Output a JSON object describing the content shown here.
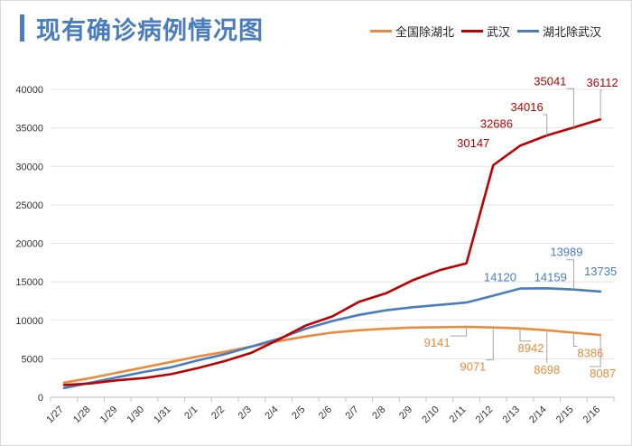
{
  "title": "现有确诊病例情况图",
  "legend": [
    {
      "name": "全国除湖北",
      "color": "#ed8b3c"
    },
    {
      "name": "武汉",
      "color": "#c00000"
    },
    {
      "name": "湖北除武汉",
      "color": "#4a7cc0"
    }
  ],
  "chart_data": {
    "type": "line",
    "title": "现有确诊病例情况图",
    "xlabel": "",
    "ylabel": "",
    "ylim": [
      0,
      40000
    ],
    "yticks": [
      0,
      5000,
      10000,
      15000,
      20000,
      25000,
      30000,
      35000,
      40000
    ],
    "grid": true,
    "legend_position": "top-right",
    "categories": [
      "1/27",
      "1/28",
      "1/29",
      "1/30",
      "1/31",
      "2/1",
      "2/2",
      "2/3",
      "2/4",
      "2/5",
      "2/6",
      "2/7",
      "2/8",
      "2/9",
      "2/10",
      "2/11",
      "2/12",
      "2/13",
      "2/14",
      "2/15",
      "2/16"
    ],
    "series": [
      {
        "name": "全国除湖北",
        "color": "#ed8b3c",
        "values": [
          1900,
          2500,
          3200,
          3900,
          4600,
          5300,
          5900,
          6600,
          7300,
          7900,
          8400,
          8700,
          8900,
          9050,
          9100,
          9141,
          9071,
          8942,
          8698,
          8386,
          8087
        ],
        "labels": [
          {
            "index": 15,
            "text": "9141"
          },
          {
            "index": 16,
            "text": "9071"
          },
          {
            "index": 17,
            "text": "8942"
          },
          {
            "index": 18,
            "text": "8698"
          },
          {
            "index": 19,
            "text": "8386"
          },
          {
            "index": 20,
            "text": "8087"
          }
        ]
      },
      {
        "name": "武汉",
        "color": "#c00000",
        "values": [
          1600,
          1800,
          2200,
          2500,
          3000,
          3800,
          4700,
          5800,
          7500,
          9300,
          10500,
          12400,
          13500,
          15200,
          16500,
          17400,
          30147,
          32686,
          34016,
          35041,
          36112
        ],
        "labels": [
          {
            "index": 16,
            "text": "30147"
          },
          {
            "index": 17,
            "text": "32686"
          },
          {
            "index": 18,
            "text": "34016"
          },
          {
            "index": 19,
            "text": "35041"
          },
          {
            "index": 20,
            "text": "36112"
          }
        ]
      },
      {
        "name": "湖北除武汉",
        "color": "#4a7cc0",
        "values": [
          1200,
          1900,
          2600,
          3300,
          3900,
          4800,
          5600,
          6600,
          7600,
          8900,
          9900,
          10700,
          11300,
          11700,
          12000,
          12300,
          13200,
          14120,
          14159,
          13989,
          13735
        ],
        "labels": [
          {
            "index": 17,
            "text": "14120"
          },
          {
            "index": 18,
            "text": "14159"
          },
          {
            "index": 19,
            "text": "13989"
          },
          {
            "index": 20,
            "text": "13735"
          }
        ]
      }
    ]
  }
}
